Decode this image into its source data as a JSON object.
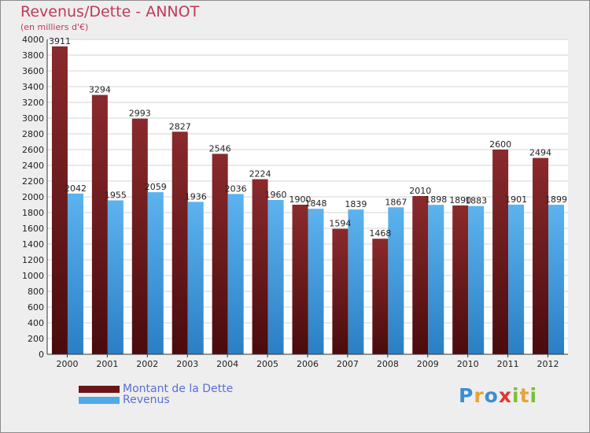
{
  "title": "Revenus/Dette - ANNOT",
  "subtitle": "(en milliers d'€)",
  "logo": {
    "text": "Proxiti",
    "letters": [
      {
        "ch": "P",
        "color": "#3b8fd0"
      },
      {
        "ch": "r",
        "color": "#e8a33a"
      },
      {
        "ch": "o",
        "color": "#3b8fd0"
      },
      {
        "ch": "x",
        "color": "#e2362f"
      },
      {
        "ch": "i",
        "color": "#7bbf3a"
      },
      {
        "ch": "t",
        "color": "#e8a33a"
      },
      {
        "ch": "i",
        "color": "#7bbf3a"
      }
    ]
  },
  "chart_data": {
    "type": "bar",
    "categories": [
      "2000",
      "2001",
      "2002",
      "2003",
      "2004",
      "2005",
      "2006",
      "2007",
      "2008",
      "2009",
      "2010",
      "2011",
      "2012"
    ],
    "series": [
      {
        "name": "Montant de la Dette",
        "values": [
          3911,
          3294,
          2993,
          2827,
          2546,
          2224,
          1900,
          1594,
          1468,
          2010,
          1890,
          2600,
          2494
        ],
        "color": "#7a1f22"
      },
      {
        "name": "Revenus",
        "values": [
          2042,
          1955,
          2059,
          1936,
          2036,
          1960,
          1848,
          1839,
          1867,
          1898,
          1883,
          1901,
          1899
        ],
        "color": "#52a9e8"
      }
    ],
    "data_labels": {
      "dette": [
        "3911",
        "3294",
        "2993",
        "2827",
        "2546",
        "2224",
        "1900",
        "1594",
        "1468",
        "2010",
        "1890",
        "2600",
        "2494"
      ],
      "revenus": [
        "2042",
        "1955",
        "2059",
        "1936",
        "2036",
        "1960",
        "1848",
        "1839",
        "1867",
        "1898",
        "1883",
        "1901",
        "1899"
      ]
    },
    "ylim": [
      0,
      4000
    ],
    "yticks": [
      0,
      200,
      400,
      600,
      800,
      1000,
      1200,
      1400,
      1600,
      1800,
      2000,
      2200,
      2400,
      2600,
      2800,
      3000,
      3200,
      3400,
      3600,
      3800,
      4000
    ],
    "grid": true,
    "legend_position": "bottom-left",
    "xlabel": "",
    "ylabel": ""
  }
}
